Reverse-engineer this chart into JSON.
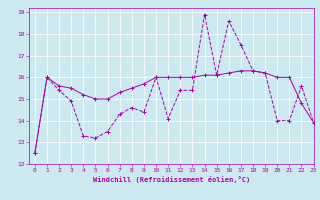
{
  "xlabel": "Windchill (Refroidissement éolien,°C)",
  "xlim": [
    -0.5,
    23
  ],
  "ylim": [
    12,
    19.2
  ],
  "yticks": [
    12,
    13,
    14,
    15,
    16,
    17,
    18,
    19
  ],
  "xticks": [
    0,
    1,
    2,
    3,
    4,
    5,
    6,
    7,
    8,
    9,
    10,
    11,
    12,
    13,
    14,
    15,
    16,
    17,
    18,
    19,
    20,
    21,
    22,
    23
  ],
  "background_color": "#cde9f0",
  "line_color": "#aa00aa",
  "line1_x": [
    0,
    1,
    2,
    3,
    4,
    5,
    6,
    7,
    8,
    9,
    10,
    11,
    12,
    13,
    14,
    15,
    16,
    17,
    18,
    19,
    20,
    21,
    22,
    23
  ],
  "line1_y": [
    12.5,
    16.0,
    15.4,
    14.9,
    13.3,
    13.2,
    13.5,
    14.3,
    14.6,
    14.4,
    16.0,
    14.1,
    15.4,
    15.4,
    18.9,
    16.1,
    18.6,
    17.5,
    16.3,
    16.2,
    14.0,
    14.0,
    15.6,
    13.9
  ],
  "line2_x": [
    0,
    1,
    2,
    3,
    4,
    5,
    6,
    7,
    8,
    9,
    10,
    11,
    12,
    13,
    14,
    15,
    16,
    17,
    18,
    19,
    20,
    21,
    22,
    23
  ],
  "line2_y": [
    12.5,
    16.0,
    15.6,
    15.5,
    15.2,
    15.0,
    15.0,
    15.3,
    15.5,
    15.7,
    16.0,
    16.0,
    16.0,
    16.0,
    16.1,
    16.1,
    16.2,
    16.3,
    16.3,
    16.2,
    16.0,
    16.0,
    14.8,
    13.9
  ],
  "tick_labelsize": 4.5,
  "xlabel_fontsize": 5.0,
  "line_width": 0.7,
  "marker_size": 3.0
}
